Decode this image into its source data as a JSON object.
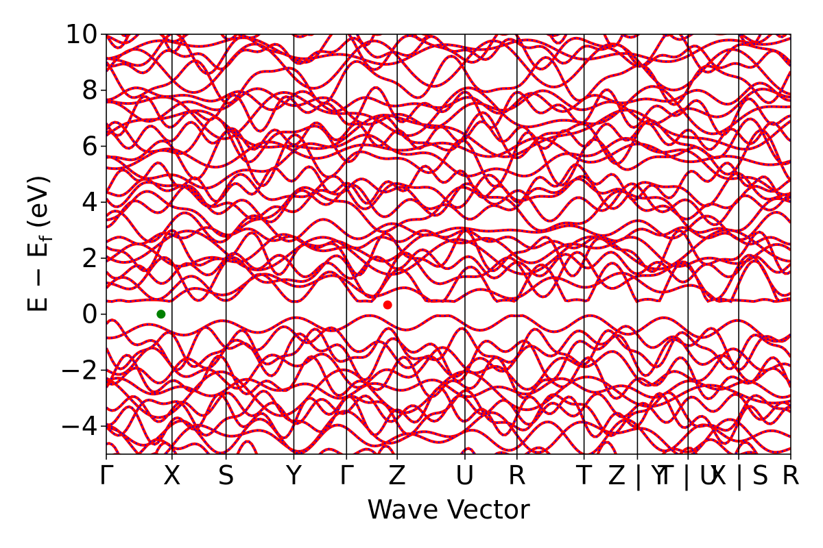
{
  "chart_data": {
    "type": "line",
    "title": "",
    "xlabel": "Wave Vector",
    "ylabel": {
      "main": "E − E",
      "subscript": "f",
      "unit": "(eV)"
    },
    "ylim": [
      -5,
      10
    ],
    "yticks": [
      -4,
      -2,
      0,
      2,
      4,
      6,
      8,
      10
    ],
    "ytick_labels": [
      "−4",
      "−2",
      "0",
      "2",
      "4",
      "6",
      "8",
      "10"
    ],
    "high_symmetry_points": [
      {
        "label": "Γ",
        "k": 0.0
      },
      {
        "label": "X",
        "k": 0.096
      },
      {
        "label": "S",
        "k": 0.175
      },
      {
        "label": "Y",
        "k": 0.274
      },
      {
        "label": "Γ",
        "k": 0.351
      },
      {
        "label": "Z",
        "k": 0.425
      },
      {
        "label": "U",
        "k": 0.524
      },
      {
        "label": "R",
        "k": 0.6
      },
      {
        "label": "T",
        "k": 0.698
      },
      {
        "label": "Z | Y",
        "k": 0.776
      },
      {
        "label": "T | U",
        "k": 0.85
      },
      {
        "label": "X | S",
        "k": 0.924
      },
      {
        "label": "R",
        "k": 1.0
      }
    ],
    "series_styles": [
      {
        "color": "#ff0000",
        "style": "solid"
      },
      {
        "color": "#0000ff",
        "style": "dotted"
      }
    ],
    "markers": [
      {
        "role": "VBM",
        "k": 0.08,
        "energy": 0.0,
        "color": "#008000"
      },
      {
        "role": "CBM",
        "k": 0.411,
        "energy": 0.33,
        "color": "#ff0000"
      }
    ]
  }
}
